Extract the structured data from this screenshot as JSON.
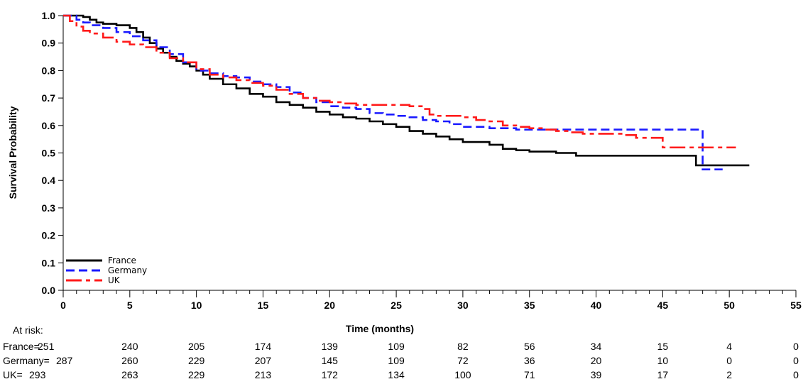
{
  "chart_data": {
    "type": "line",
    "subtype": "kaplan-meier-step",
    "xlabel": "Time (months)",
    "ylabel": "Survival Probability",
    "xlim": [
      0,
      55
    ],
    "ylim": [
      0,
      1
    ],
    "x_ticks": [
      0,
      5,
      10,
      15,
      20,
      25,
      30,
      35,
      40,
      45,
      50,
      55
    ],
    "y_ticks": [
      0.0,
      0.1,
      0.2,
      0.3,
      0.4,
      0.5,
      0.6,
      0.7,
      0.8,
      0.9,
      1.0
    ],
    "y_tick_labels": [
      "0.0",
      "0.1",
      "0.2",
      "0.3",
      "0.4",
      "0.5",
      "0.6",
      "0.7",
      "0.8",
      "0.9",
      "1.0"
    ],
    "grid": false,
    "legend_position": "bottom-left",
    "series": [
      {
        "name": "France",
        "color": "#000000",
        "dash": "solid",
        "x": [
          0,
          1,
          1.5,
          2,
          2.5,
          3,
          4,
          5,
          5.5,
          6,
          6.5,
          7,
          7.5,
          8,
          8.5,
          9,
          9.5,
          10,
          10.5,
          11,
          12,
          13,
          14,
          15,
          16,
          17,
          18,
          19,
          20,
          21,
          22,
          23,
          24,
          25,
          26,
          27,
          28,
          29,
          30,
          31,
          32,
          33,
          34,
          35,
          36,
          37,
          38,
          38.5,
          40,
          42,
          44,
          46,
          47.3,
          47.5,
          48,
          50,
          51.5
        ],
        "y": [
          1.0,
          1.0,
          0.995,
          0.985,
          0.975,
          0.97,
          0.965,
          0.955,
          0.94,
          0.92,
          0.9,
          0.88,
          0.865,
          0.85,
          0.835,
          0.825,
          0.815,
          0.8,
          0.785,
          0.77,
          0.75,
          0.735,
          0.715,
          0.705,
          0.685,
          0.675,
          0.665,
          0.65,
          0.64,
          0.63,
          0.625,
          0.615,
          0.605,
          0.595,
          0.58,
          0.57,
          0.56,
          0.55,
          0.54,
          0.54,
          0.53,
          0.515,
          0.51,
          0.505,
          0.505,
          0.5,
          0.5,
          0.49,
          0.49,
          0.49,
          0.49,
          0.49,
          0.49,
          0.455,
          0.455,
          0.455,
          0.455
        ]
      },
      {
        "name": "Germany",
        "color": "#1a1aff",
        "dash": "dashed",
        "x": [
          0,
          1,
          1.5,
          2,
          3,
          4,
          5,
          6,
          7,
          8,
          9,
          10,
          11,
          12,
          13,
          14,
          15,
          16,
          17,
          18,
          19,
          20,
          21,
          22,
          23,
          24,
          25,
          26,
          27,
          28,
          29,
          30,
          32,
          34,
          36,
          38,
          40,
          42,
          44,
          46,
          47.9,
          48,
          49.5
        ],
        "y": [
          1.0,
          0.985,
          0.975,
          0.965,
          0.955,
          0.94,
          0.925,
          0.91,
          0.885,
          0.86,
          0.83,
          0.8,
          0.79,
          0.78,
          0.775,
          0.76,
          0.75,
          0.74,
          0.72,
          0.7,
          0.685,
          0.67,
          0.665,
          0.66,
          0.645,
          0.64,
          0.635,
          0.63,
          0.62,
          0.615,
          0.605,
          0.595,
          0.59,
          0.585,
          0.585,
          0.585,
          0.585,
          0.585,
          0.585,
          0.585,
          0.585,
          0.44,
          0.44
        ]
      },
      {
        "name": "UK",
        "color": "#ff1a1a",
        "dash": "dash-dot",
        "x": [
          0,
          0.5,
          1,
          1.5,
          2,
          3,
          4,
          5,
          6,
          7,
          8,
          9,
          10,
          11,
          12,
          13,
          14,
          15,
          16,
          17,
          18,
          19,
          20,
          21,
          22,
          23,
          24,
          25,
          26,
          27,
          27.5,
          28,
          30,
          31,
          32,
          33,
          34,
          35,
          36,
          37,
          38,
          39,
          40,
          42,
          43,
          44,
          45,
          46,
          48,
          50,
          50.5
        ],
        "y": [
          1.0,
          0.98,
          0.96,
          0.945,
          0.935,
          0.92,
          0.905,
          0.895,
          0.885,
          0.865,
          0.845,
          0.83,
          0.805,
          0.785,
          0.775,
          0.765,
          0.755,
          0.745,
          0.73,
          0.715,
          0.7,
          0.69,
          0.685,
          0.68,
          0.675,
          0.675,
          0.675,
          0.675,
          0.67,
          0.66,
          0.64,
          0.635,
          0.63,
          0.62,
          0.615,
          0.6,
          0.595,
          0.59,
          0.585,
          0.58,
          0.575,
          0.57,
          0.57,
          0.565,
          0.555,
          0.555,
          0.52,
          0.52,
          0.52,
          0.52,
          0.52
        ]
      }
    ],
    "risk_table": {
      "title": "At risk:",
      "times": [
        0,
        5,
        10,
        15,
        20,
        25,
        30,
        35,
        40,
        45,
        50,
        55
      ],
      "rows": [
        {
          "label": "France=",
          "counts": [
            "251",
            "240",
            "205",
            "174",
            "139",
            "109",
            "82",
            "56",
            "34",
            "15",
            "4",
            "0"
          ]
        },
        {
          "label": "Germany=",
          "counts": [
            "287",
            "260",
            "229",
            "207",
            "145",
            "109",
            "72",
            "36",
            "20",
            "10",
            "0",
            "0"
          ]
        },
        {
          "label": "UK=",
          "counts": [
            "293",
            "263",
            "229",
            "213",
            "172",
            "134",
            "100",
            "71",
            "39",
            "17",
            "2",
            "0"
          ]
        }
      ]
    }
  }
}
